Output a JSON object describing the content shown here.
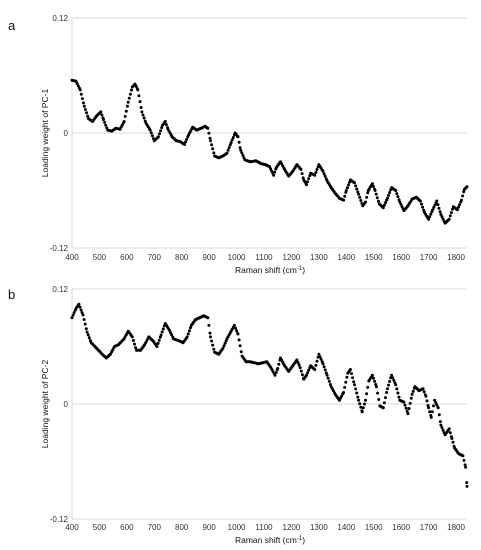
{
  "panels": [
    {
      "letter": "a",
      "x_label": "Raman shift (cm",
      "x_label_sup": "-1",
      "x_label_tail": ")",
      "y_label": "Loading weight of PC-1"
    },
    {
      "letter": "b",
      "x_label": "Raman shift (cm",
      "x_label_sup": "-1",
      "x_label_tail": ")",
      "y_label": "Loading weight of PC-2"
    }
  ],
  "chart_data": [
    {
      "type": "scatter",
      "x_label": "Raman shift (cm-1)",
      "y_label": "Loading weight of PC-1",
      "xlim": [
        400,
        1840
      ],
      "ylim": [
        -0.12,
        0.12
      ],
      "x_ticks": [
        400,
        500,
        600,
        700,
        800,
        900,
        1000,
        1100,
        1200,
        1300,
        1400,
        1500,
        1600,
        1700,
        1800
      ],
      "y_ticks": [
        0.12,
        0,
        -0.12
      ],
      "y_tick_labels": [
        "0.12",
        "0",
        "-0.12"
      ],
      "grid": "horizontal",
      "marker_color": "#000000",
      "series": [
        {
          "points": [
            [
              400,
              0.055
            ],
            [
              415,
              0.054
            ],
            [
              430,
              0.045
            ],
            [
              445,
              0.028
            ],
            [
              460,
              0.015
            ],
            [
              475,
              0.012
            ],
            [
              490,
              0.018
            ],
            [
              505,
              0.022
            ],
            [
              515,
              0.014
            ],
            [
              530,
              0.003
            ],
            [
              545,
              0.002
            ],
            [
              560,
              0.005
            ],
            [
              575,
              0.004
            ],
            [
              590,
              0.012
            ],
            [
              605,
              0.032
            ],
            [
              620,
              0.048
            ],
            [
              630,
              0.051
            ],
            [
              640,
              0.045
            ],
            [
              655,
              0.022
            ],
            [
              670,
              0.01
            ],
            [
              685,
              0.003
            ],
            [
              700,
              -0.008
            ],
            [
              715,
              -0.004
            ],
            [
              730,
              0.008
            ],
            [
              740,
              0.012
            ],
            [
              750,
              0.004
            ],
            [
              765,
              -0.004
            ],
            [
              780,
              -0.008
            ],
            [
              795,
              -0.009
            ],
            [
              810,
              -0.012
            ],
            [
              825,
              -0.002
            ],
            [
              840,
              0.006
            ],
            [
              855,
              0.003
            ],
            [
              870,
              0.005
            ],
            [
              885,
              0.007
            ],
            [
              895,
              0.005
            ],
            [
              905,
              -0.008
            ],
            [
              920,
              -0.024
            ],
            [
              935,
              -0.026
            ],
            [
              950,
              -0.024
            ],
            [
              965,
              -0.021
            ],
            [
              980,
              -0.01
            ],
            [
              995,
              0.0
            ],
            [
              1005,
              -0.004
            ],
            [
              1015,
              -0.018
            ],
            [
              1030,
              -0.028
            ],
            [
              1050,
              -0.03
            ],
            [
              1070,
              -0.029
            ],
            [
              1090,
              -0.032
            ],
            [
              1105,
              -0.033
            ],
            [
              1120,
              -0.035
            ],
            [
              1135,
              -0.044
            ],
            [
              1145,
              -0.036
            ],
            [
              1160,
              -0.03
            ],
            [
              1175,
              -0.038
            ],
            [
              1190,
              -0.045
            ],
            [
              1205,
              -0.04
            ],
            [
              1220,
              -0.033
            ],
            [
              1235,
              -0.038
            ],
            [
              1245,
              -0.049
            ],
            [
              1255,
              -0.054
            ],
            [
              1270,
              -0.042
            ],
            [
              1285,
              -0.044
            ],
            [
              1300,
              -0.033
            ],
            [
              1315,
              -0.04
            ],
            [
              1330,
              -0.05
            ],
            [
              1345,
              -0.057
            ],
            [
              1360,
              -0.063
            ],
            [
              1375,
              -0.068
            ],
            [
              1390,
              -0.07
            ],
            [
              1400,
              -0.06
            ],
            [
              1415,
              -0.049
            ],
            [
              1430,
              -0.052
            ],
            [
              1445,
              -0.064
            ],
            [
              1460,
              -0.076
            ],
            [
              1470,
              -0.072
            ],
            [
              1480,
              -0.06
            ],
            [
              1495,
              -0.053
            ],
            [
              1505,
              -0.06
            ],
            [
              1520,
              -0.074
            ],
            [
              1535,
              -0.078
            ],
            [
              1550,
              -0.068
            ],
            [
              1565,
              -0.057
            ],
            [
              1580,
              -0.06
            ],
            [
              1595,
              -0.072
            ],
            [
              1610,
              -0.081
            ],
            [
              1625,
              -0.076
            ],
            [
              1640,
              -0.069
            ],
            [
              1655,
              -0.067
            ],
            [
              1670,
              -0.071
            ],
            [
              1685,
              -0.083
            ],
            [
              1700,
              -0.09
            ],
            [
              1715,
              -0.08
            ],
            [
              1730,
              -0.071
            ],
            [
              1745,
              -0.085
            ],
            [
              1760,
              -0.094
            ],
            [
              1775,
              -0.09
            ],
            [
              1790,
              -0.077
            ],
            [
              1805,
              -0.08
            ],
            [
              1820,
              -0.07
            ],
            [
              1830,
              -0.059
            ],
            [
              1840,
              -0.056
            ]
          ]
        }
      ]
    },
    {
      "type": "scatter",
      "x_label": "Raman shift (cm-1)",
      "y_label": "Loading weight of PC-2",
      "xlim": [
        400,
        1840
      ],
      "ylim": [
        -0.12,
        0.12
      ],
      "x_ticks": [
        400,
        500,
        600,
        700,
        800,
        900,
        1000,
        1100,
        1200,
        1300,
        1400,
        1500,
        1600,
        1700,
        1800
      ],
      "y_ticks": [
        0.12,
        0,
        -0.12
      ],
      "y_tick_labels": [
        "0.12",
        "0",
        "-0.12"
      ],
      "grid": "horizontal",
      "marker_color": "#000000",
      "series": [
        {
          "points": [
            [
              400,
              0.09
            ],
            [
              415,
              0.1
            ],
            [
              425,
              0.104
            ],
            [
              440,
              0.093
            ],
            [
              455,
              0.075
            ],
            [
              470,
              0.064
            ],
            [
              490,
              0.058
            ],
            [
              510,
              0.052
            ],
            [
              525,
              0.048
            ],
            [
              540,
              0.052
            ],
            [
              555,
              0.06
            ],
            [
              570,
              0.062
            ],
            [
              590,
              0.068
            ],
            [
              605,
              0.076
            ],
            [
              620,
              0.07
            ],
            [
              635,
              0.056
            ],
            [
              650,
              0.056
            ],
            [
              665,
              0.062
            ],
            [
              680,
              0.07
            ],
            [
              695,
              0.066
            ],
            [
              710,
              0.06
            ],
            [
              725,
              0.072
            ],
            [
              740,
              0.084
            ],
            [
              755,
              0.077
            ],
            [
              770,
              0.068
            ],
            [
              790,
              0.066
            ],
            [
              805,
              0.064
            ],
            [
              820,
              0.07
            ],
            [
              835,
              0.082
            ],
            [
              850,
              0.088
            ],
            [
              865,
              0.09
            ],
            [
              880,
              0.092
            ],
            [
              895,
              0.09
            ],
            [
              905,
              0.07
            ],
            [
              920,
              0.054
            ],
            [
              935,
              0.052
            ],
            [
              950,
              0.058
            ],
            [
              965,
              0.068
            ],
            [
              980,
              0.076
            ],
            [
              992,
              0.082
            ],
            [
              1005,
              0.073
            ],
            [
              1020,
              0.05
            ],
            [
              1035,
              0.044
            ],
            [
              1050,
              0.044
            ],
            [
              1065,
              0.043
            ],
            [
              1080,
              0.042
            ],
            [
              1095,
              0.043
            ],
            [
              1110,
              0.044
            ],
            [
              1125,
              0.038
            ],
            [
              1140,
              0.03
            ],
            [
              1150,
              0.037
            ],
            [
              1160,
              0.048
            ],
            [
              1175,
              0.04
            ],
            [
              1190,
              0.034
            ],
            [
              1205,
              0.04
            ],
            [
              1220,
              0.046
            ],
            [
              1232,
              0.038
            ],
            [
              1245,
              0.026
            ],
            [
              1255,
              0.03
            ],
            [
              1270,
              0.04
            ],
            [
              1285,
              0.036
            ],
            [
              1300,
              0.052
            ],
            [
              1315,
              0.042
            ],
            [
              1330,
              0.03
            ],
            [
              1345,
              0.018
            ],
            [
              1360,
              0.01
            ],
            [
              1375,
              0.004
            ],
            [
              1390,
              0.012
            ],
            [
              1405,
              0.032
            ],
            [
              1415,
              0.036
            ],
            [
              1430,
              0.02
            ],
            [
              1445,
              0.004
            ],
            [
              1458,
              -0.008
            ],
            [
              1470,
              0.004
            ],
            [
              1482,
              0.024
            ],
            [
              1495,
              0.03
            ],
            [
              1510,
              0.018
            ],
            [
              1522,
              -0.002
            ],
            [
              1535,
              -0.004
            ],
            [
              1550,
              0.016
            ],
            [
              1565,
              0.03
            ],
            [
              1580,
              0.02
            ],
            [
              1595,
              0.004
            ],
            [
              1610,
              0.002
            ],
            [
              1625,
              -0.01
            ],
            [
              1640,
              0.01
            ],
            [
              1650,
              0.018
            ],
            [
              1665,
              0.014
            ],
            [
              1680,
              0.016
            ],
            [
              1690,
              0.008
            ],
            [
              1700,
              -0.004
            ],
            [
              1710,
              -0.014
            ],
            [
              1722,
              0.004
            ],
            [
              1735,
              -0.004
            ],
            [
              1745,
              -0.022
            ],
            [
              1760,
              -0.032
            ],
            [
              1775,
              -0.026
            ],
            [
              1785,
              -0.036
            ],
            [
              1795,
              -0.046
            ],
            [
              1810,
              -0.052
            ],
            [
              1825,
              -0.054
            ],
            [
              1835,
              -0.066
            ],
            [
              1840,
              -0.086
            ]
          ]
        }
      ]
    }
  ]
}
